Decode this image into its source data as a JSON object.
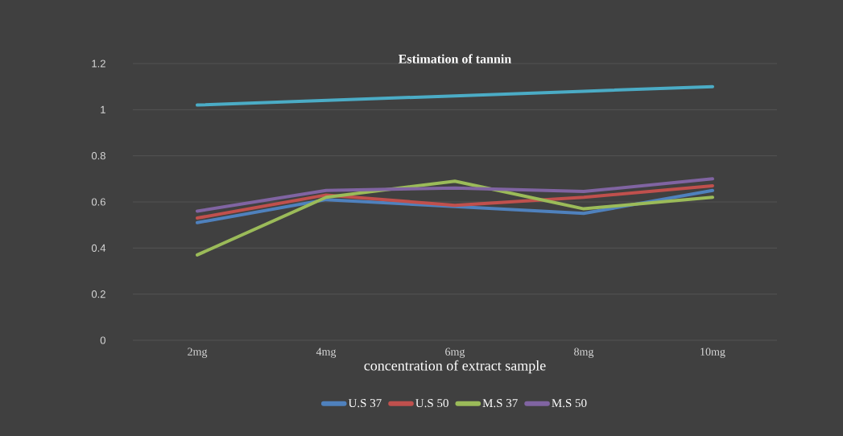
{
  "chart_data": {
    "type": "line",
    "title": "Estimation of tannin",
    "xlabel": "concentration of extract sample",
    "categories": [
      "2mg",
      "4mg",
      "6mg",
      "8mg",
      "10mg"
    ],
    "series": [
      {
        "name": "U.S 37",
        "color": "#4f81bd",
        "values": [
          0.51,
          0.61,
          0.58,
          0.55,
          0.65
        ]
      },
      {
        "name": "U.S 50",
        "color": "#c0504d",
        "values": [
          0.53,
          0.63,
          0.585,
          0.62,
          0.67
        ]
      },
      {
        "name": "M.S 37",
        "color": "#9bbb59",
        "values": [
          0.37,
          0.62,
          0.69,
          0.57,
          0.62
        ]
      },
      {
        "name": "M.S 50",
        "color": "#8064a2",
        "values": [
          0.56,
          0.65,
          0.66,
          0.645,
          0.7
        ]
      },
      {
        "color": "#4bacc6",
        "values": [
          1.02,
          1.04,
          1.06,
          1.08,
          1.1
        ]
      }
    ],
    "ylim": [
      0,
      1.2
    ],
    "yticks": [
      0,
      0.2,
      0.4,
      0.6,
      0.8,
      1,
      1.2
    ],
    "grid": "y",
    "legend": "bottom",
    "marker": "none",
    "line_style": "solid"
  }
}
